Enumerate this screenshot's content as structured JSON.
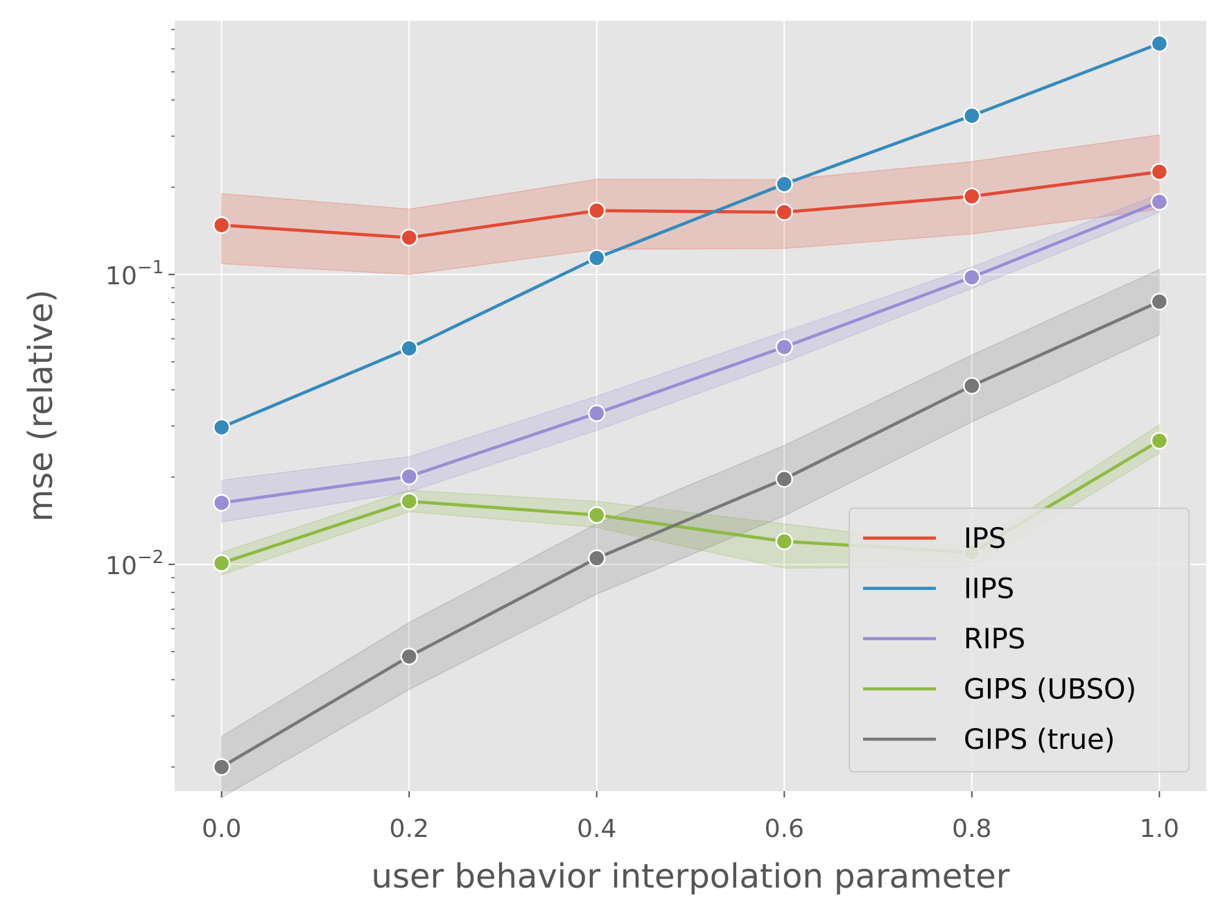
{
  "chart_data": {
    "type": "line",
    "xlabel": "user behavior interpolation parameter",
    "ylabel": "mse (relative)",
    "yscale": "log",
    "xlim": [
      -0.05,
      1.05
    ],
    "ylim": [
      0.00165,
      0.75
    ],
    "grid": true,
    "legend_position": "bottom-right",
    "x_ticks": [
      "0.0",
      "0.2",
      "0.4",
      "0.6",
      "0.8",
      "1.0"
    ],
    "y_ticks": [
      {
        "value": 0.1,
        "base": "10",
        "exp": "−1"
      },
      {
        "value": 0.01,
        "base": "10",
        "exp": "−2"
      }
    ],
    "x": [
      0.0,
      0.2,
      0.4,
      0.6,
      0.8,
      1.0
    ],
    "series": [
      {
        "name": "IPS",
        "color": "#E24A33",
        "values": [
          0.148,
          0.134,
          0.166,
          0.164,
          0.186,
          0.226
        ],
        "band_low": [
          0.109,
          0.1,
          0.122,
          0.123,
          0.138,
          0.168
        ],
        "band_high": [
          0.19,
          0.168,
          0.213,
          0.212,
          0.245,
          0.303
        ]
      },
      {
        "name": "IIPS",
        "color": "#348ABD",
        "values": [
          0.0297,
          0.0556,
          0.114,
          0.205,
          0.353,
          0.626
        ],
        "band_low": null,
        "band_high": null
      },
      {
        "name": "RIPS",
        "color": "#988ED5",
        "values": [
          0.0163,
          0.0201,
          0.0332,
          0.0562,
          0.0978,
          0.178
        ],
        "band_low": [
          0.014,
          0.0178,
          0.029,
          0.0498,
          0.0895,
          0.164
        ],
        "band_high": [
          0.0195,
          0.0235,
          0.038,
          0.0635,
          0.106,
          0.19
        ]
      },
      {
        "name": "GIPS (UBSO)",
        "color": "#8EBA42",
        "values": [
          0.0101,
          0.0165,
          0.0148,
          0.012,
          0.011,
          0.0267
        ],
        "band_low": [
          0.0092,
          0.0152,
          0.0134,
          0.0097,
          0.0098,
          0.0242
        ],
        "band_high": [
          0.011,
          0.018,
          0.0165,
          0.0138,
          0.0115,
          0.0303
        ]
      },
      {
        "name": "GIPS (true)",
        "color": "#777777",
        "values": [
          0.002,
          0.00481,
          0.0105,
          0.0197,
          0.0413,
          0.0806
        ],
        "band_low": [
          0.00157,
          0.0037,
          0.0079,
          0.0147,
          0.031,
          0.062
        ],
        "band_high": [
          0.00255,
          0.0063,
          0.0138,
          0.0257,
          0.0527,
          0.104
        ]
      }
    ]
  }
}
